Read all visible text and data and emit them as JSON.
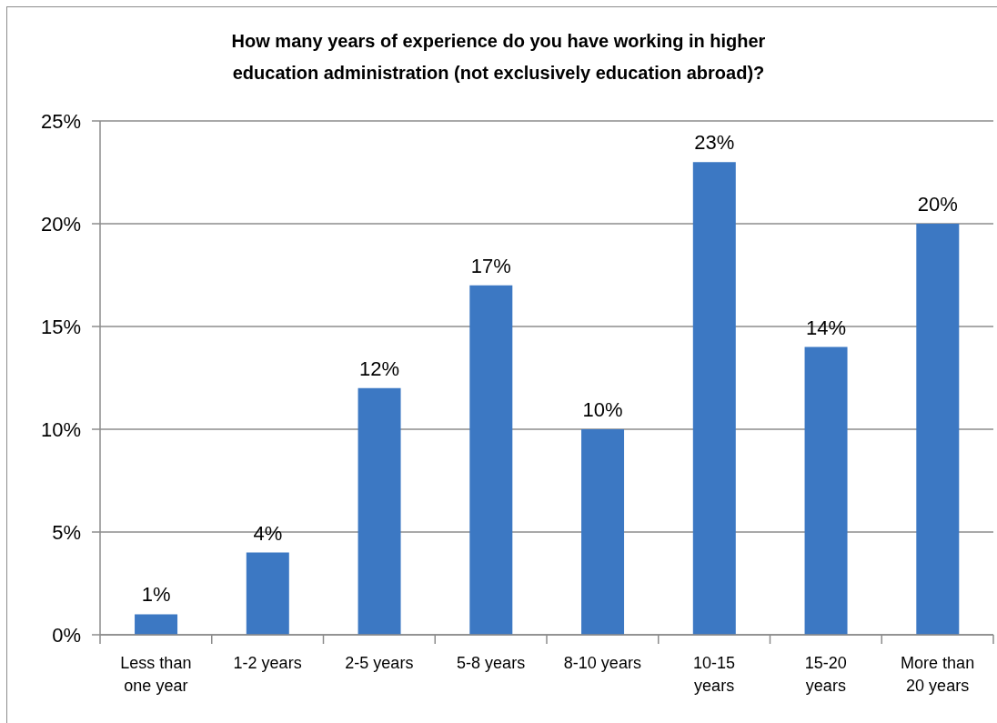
{
  "chart_data": {
    "type": "bar",
    "title": "How many years of experience do you have working in higher education administration (not exclusively education abroad)?",
    "categories": [
      "Less than one year",
      "1-2 years",
      "2-5 years",
      "5-8 years",
      "8-10 years",
      "10-15 years",
      "15-20 years",
      "More than 20 years"
    ],
    "values": [
      1,
      4,
      12,
      17,
      10,
      23,
      14,
      20
    ],
    "value_labels": [
      "1%",
      "4%",
      "12%",
      "17%",
      "10%",
      "23%",
      "14%",
      "20%"
    ],
    "color": "#3c78c3",
    "ylim": [
      0,
      25
    ],
    "yticks": [
      {
        "value": 0,
        "label": "0%"
      },
      {
        "value": 5,
        "label": "5%"
      },
      {
        "value": 10,
        "label": "10%"
      },
      {
        "value": 15,
        "label": "15%"
      },
      {
        "value": 20,
        "label": "20%"
      },
      {
        "value": 25,
        "label": "25%"
      }
    ],
    "grid": "y"
  }
}
